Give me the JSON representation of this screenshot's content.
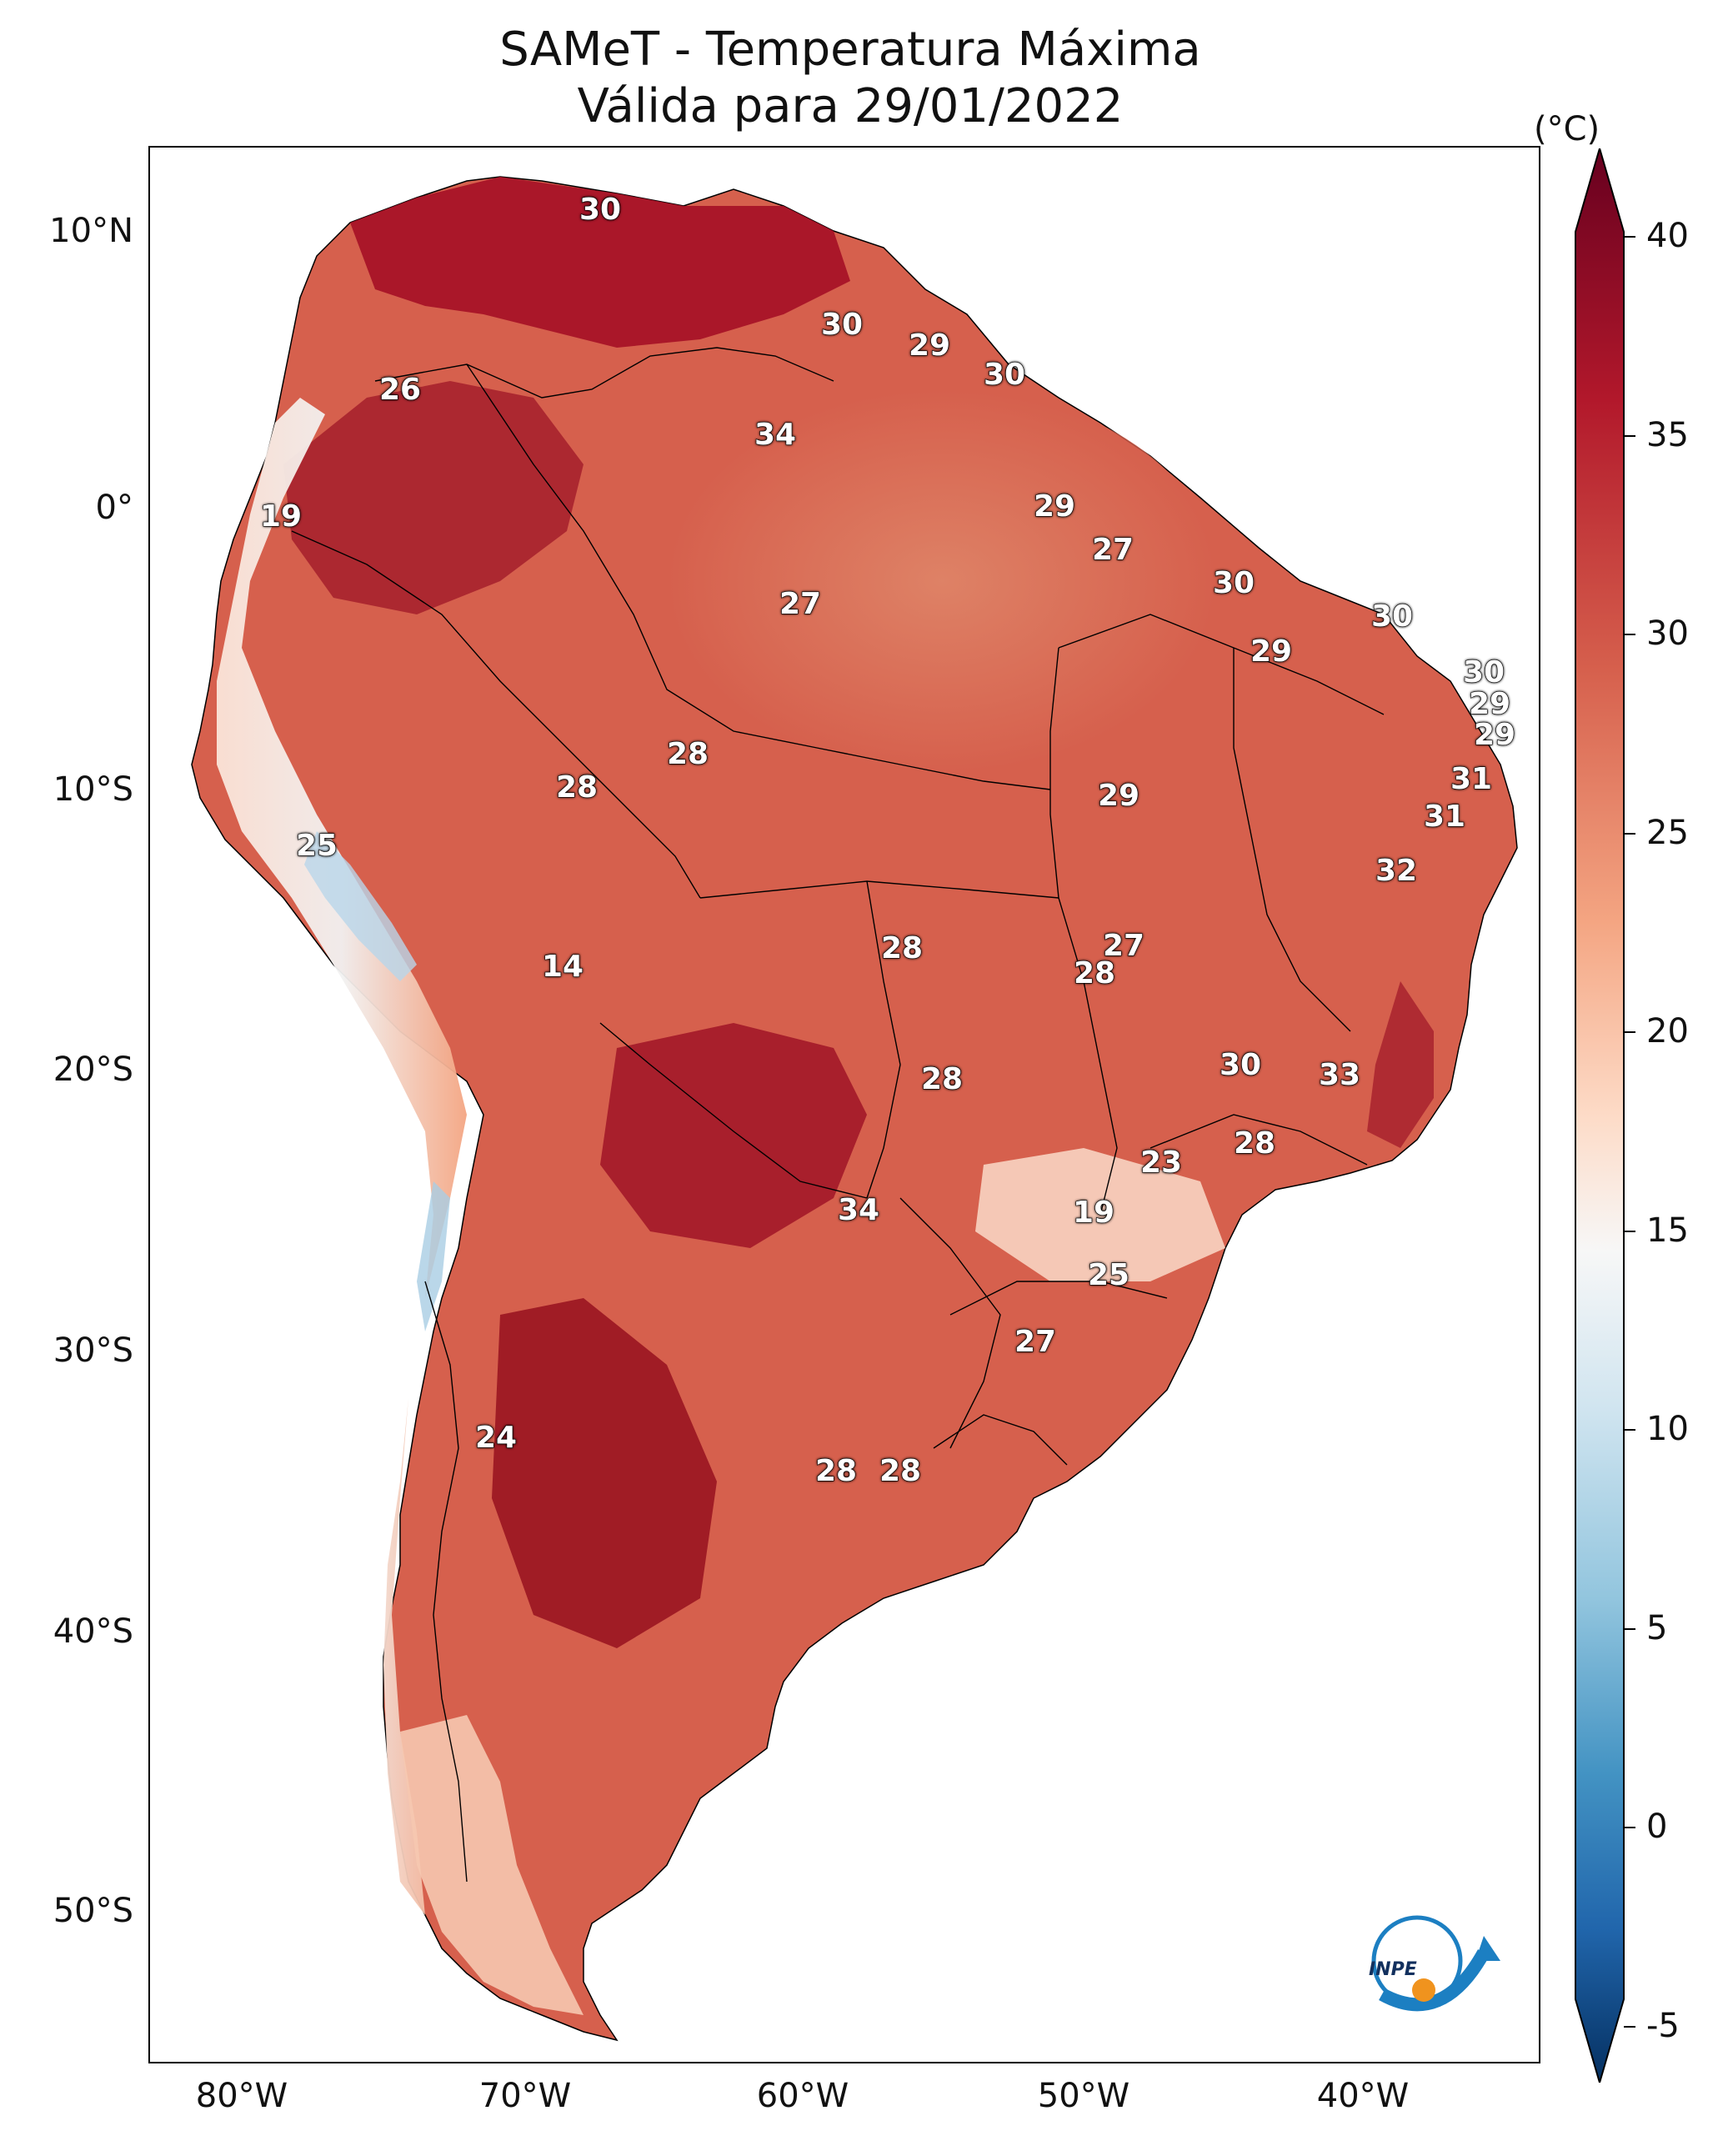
{
  "title": {
    "line1": "SAMeT - Temperatura Máxima",
    "line2": "Válida para 29/01/2022"
  },
  "axes": {
    "lat_labels": [
      "10°N",
      "0°",
      "10°S",
      "20°S",
      "30°S",
      "40°S",
      "50°S"
    ],
    "lon_labels": [
      "80°W",
      "70°W",
      "60°W",
      "50°W",
      "40°W"
    ]
  },
  "colorbar": {
    "unit": "(°C)",
    "ticks": [
      "40",
      "35",
      "30",
      "25",
      "20",
      "15",
      "10",
      "5",
      "0",
      "-5"
    ],
    "min": -7,
    "max": 41,
    "colors": {
      "top": "#67001f",
      "hot": "#b2182b",
      "warm": "#d6604d",
      "mild": "#f4a582",
      "cool_light": "#fddbc7",
      "neutral": "#f7f7f7",
      "cool": "#d1e5f0",
      "cold": "#92c5de",
      "colder": "#4393c3",
      "coldest": "#2166ac",
      "bottom": "#053061"
    }
  },
  "logo": {
    "text": "INPE",
    "icon": "inpe-logo-icon"
  },
  "point_labels": [
    {
      "v": "30"
    },
    {
      "v": "30"
    },
    {
      "v": "29"
    },
    {
      "v": "30"
    },
    {
      "v": "26"
    },
    {
      "v": "34"
    },
    {
      "v": "19"
    },
    {
      "v": "29"
    },
    {
      "v": "27"
    },
    {
      "v": "27"
    },
    {
      "v": "30"
    },
    {
      "v": "30"
    },
    {
      "v": "29"
    },
    {
      "v": "30"
    },
    {
      "v": "29"
    },
    {
      "v": "29"
    },
    {
      "v": "28"
    },
    {
      "v": "28"
    },
    {
      "v": "29"
    },
    {
      "v": "31"
    },
    {
      "v": "31"
    },
    {
      "v": "25"
    },
    {
      "v": "32"
    },
    {
      "v": "14"
    },
    {
      "v": "28"
    },
    {
      "v": "27"
    },
    {
      "v": "28"
    },
    {
      "v": "30"
    },
    {
      "v": "28"
    },
    {
      "v": "33"
    },
    {
      "v": "23"
    },
    {
      "v": "28"
    },
    {
      "v": "34"
    },
    {
      "v": "19"
    },
    {
      "v": "25"
    },
    {
      "v": "27"
    },
    {
      "v": "24"
    },
    {
      "v": "28"
    },
    {
      "v": "28"
    }
  ]
}
